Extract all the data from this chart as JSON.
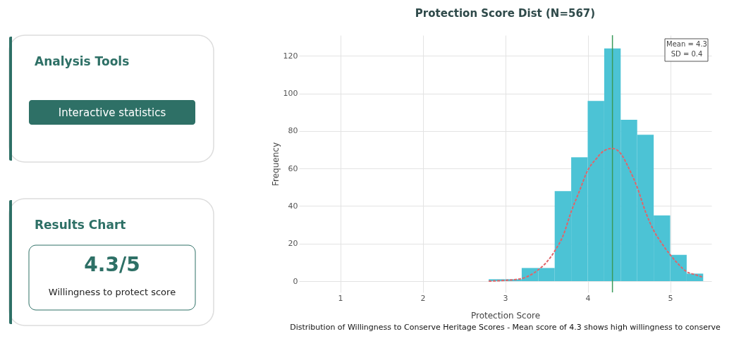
{
  "chart_data": [
    {
      "type": "other",
      "title": "Analysis Tools",
      "annotations": [
        "Interactive statistics"
      ]
    },
    {
      "type": "other",
      "title": "Results Chart",
      "annotations": [
        "4.3/5",
        "Willingness to protect score"
      ]
    },
    {
      "type": "histogram",
      "title": "Protection Score Dist (N=567)",
      "xlabel": "Protection Score",
      "ylabel": "Frequency",
      "bins": [
        2.8,
        3.0,
        3.2,
        3.4,
        3.6,
        3.8,
        4.0,
        4.2,
        4.4,
        4.6,
        4.8,
        5.0,
        5.2,
        5.4
      ],
      "values": [
        1,
        1,
        7,
        7,
        48,
        66,
        96,
        124,
        86,
        78,
        35,
        14,
        4
      ],
      "color": "#4cc3d5",
      "series": [
        {
          "type": "line",
          "color": "#e0656a",
          "line_style": "dashed",
          "x": [
            2.8,
            3.0,
            3.2,
            3.4,
            3.5,
            3.6,
            3.7,
            3.8,
            3.9,
            4.0,
            4.1,
            4.2,
            4.3,
            4.4,
            4.5,
            4.6,
            4.7,
            4.8,
            4.9,
            5.0,
            5.1,
            5.2,
            5.3,
            5.4
          ],
          "values": [
            0,
            0.4,
            1.4,
            6,
            10,
            16,
            24,
            37,
            48,
            59,
            65,
            69.5,
            70.7,
            68,
            60,
            50,
            37,
            27,
            20,
            14,
            9,
            5,
            3.5,
            2
          ]
        }
      ],
      "ref_lines": [
        {
          "axis": "x",
          "value": 4.3,
          "color": "#3a9a5a"
        }
      ],
      "xlim": [
        0.5,
        5.5
      ],
      "ylim": [
        -6,
        131
      ],
      "xticks": [
        1,
        2,
        3,
        4,
        5
      ],
      "yticks": [
        0,
        20,
        40,
        60,
        80,
        100,
        120
      ],
      "grid": true,
      "annotations": [
        "Mean = 4.3\nSD = 0.4",
        "Distribution of Willingness to Conserve Heritage Scores - Mean score of 4.3 shows high willingness to conserve"
      ]
    }
  ]
}
